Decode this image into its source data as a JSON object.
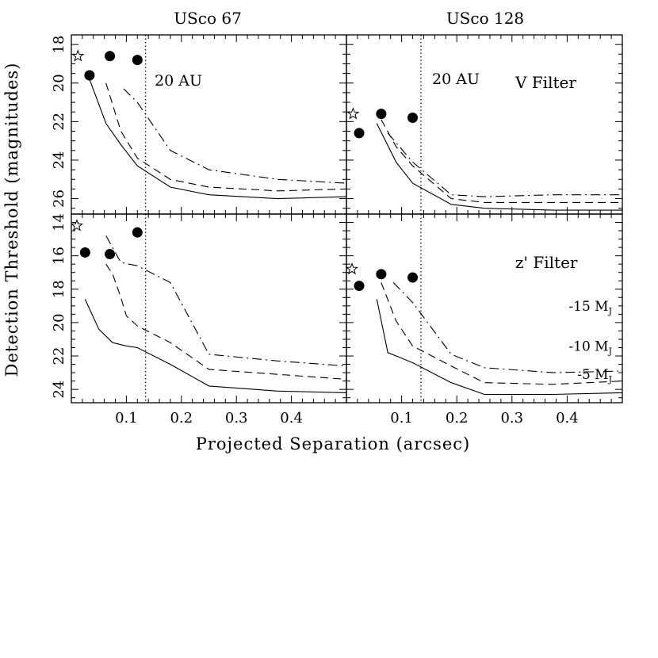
{
  "figure": {
    "xlabel": "Projected Separation (arcsec)",
    "ylabel": "Detection Threshold (magnitudes)",
    "column_titles": [
      "USco 67",
      "USco 128"
    ],
    "filter_labels": {
      "V": "V Filter",
      "z": "z' Filter"
    },
    "au_label": "20 AU",
    "mass_labels": [
      {
        "text": "-15",
        "sub": "J",
        "prefix_letter": "M",
        "mag": 19.0
      },
      {
        "text": "-10",
        "sub": "J",
        "prefix_letter": "M",
        "mag": 21.4
      },
      {
        "text": "-5",
        "sub": "J",
        "prefix_letter": "M",
        "mag": 23.1
      }
    ]
  },
  "chart_data": [
    {
      "type": "line",
      "title": "USco 67",
      "filter": "V",
      "xlim": [
        0,
        0.5
      ],
      "ylim": [
        26.8,
        17.5
      ],
      "xticks": [
        0.1,
        0.2,
        0.3,
        0.4
      ],
      "yticks": [
        18,
        20,
        22,
        24,
        26
      ],
      "vline_x": 0.135,
      "star": {
        "x": 0.012,
        "mag": 18.6
      },
      "points": [
        {
          "x": 0.033,
          "mag": 19.6
        },
        {
          "x": 0.07,
          "mag": 18.6
        },
        {
          "x": 0.12,
          "mag": 18.8
        }
      ],
      "series": [
        {
          "name": "5 MJ",
          "style": "solid",
          "x": [
            0.033,
            0.063,
            0.09,
            0.12,
            0.18,
            0.25,
            0.375,
            0.5
          ],
          "y": [
            19.8,
            22.1,
            23.2,
            24.3,
            25.4,
            25.8,
            26.0,
            25.9
          ]
        },
        {
          "name": "10 MJ",
          "style": "dashed",
          "x": [
            0.063,
            0.09,
            0.12,
            0.18,
            0.25,
            0.375,
            0.5
          ],
          "y": [
            20.0,
            22.5,
            23.9,
            25.0,
            25.4,
            25.6,
            25.5
          ]
        },
        {
          "name": "15 MJ",
          "style": "dashdot",
          "x": [
            0.095,
            0.12,
            0.18,
            0.25,
            0.375,
            0.5
          ],
          "y": [
            20.3,
            21.0,
            23.5,
            24.5,
            25.0,
            25.2
          ]
        }
      ]
    },
    {
      "type": "line",
      "title": "USco 128",
      "filter": "V",
      "xlim": [
        0,
        0.5
      ],
      "ylim": [
        26.8,
        17.5
      ],
      "xticks": [
        0.1,
        0.2,
        0.3,
        0.4
      ],
      "yticks": [
        18,
        20,
        22,
        24,
        26
      ],
      "vline_x": 0.135,
      "star": {
        "x": 0.012,
        "mag": 21.6
      },
      "points": [
        {
          "x": 0.023,
          "mag": 22.6
        },
        {
          "x": 0.063,
          "mag": 21.6
        },
        {
          "x": 0.12,
          "mag": 21.8
        }
      ],
      "series": [
        {
          "name": "5 MJ",
          "style": "solid",
          "x": [
            0.055,
            0.09,
            0.12,
            0.19,
            0.25,
            0.375,
            0.5
          ],
          "y": [
            22.1,
            24.1,
            25.2,
            26.3,
            26.5,
            26.6,
            26.6
          ]
        },
        {
          "name": "10 MJ",
          "style": "dashed",
          "x": [
            0.063,
            0.09,
            0.12,
            0.19,
            0.25,
            0.375,
            0.5
          ],
          "y": [
            21.9,
            23.3,
            24.3,
            26.0,
            26.2,
            26.2,
            26.2
          ]
        },
        {
          "name": "15 MJ",
          "style": "dashdot",
          "x": [
            0.075,
            0.12,
            0.19,
            0.25,
            0.375,
            0.5
          ],
          "y": [
            22.6,
            24.1,
            25.8,
            25.9,
            25.8,
            25.8
          ]
        }
      ]
    },
    {
      "type": "line",
      "title": "USco 67",
      "filter": "z'",
      "xlim": [
        0,
        0.5
      ],
      "ylim": [
        24.8,
        13.5
      ],
      "xticks": [
        0.1,
        0.2,
        0.3,
        0.4
      ],
      "yticks": [
        14,
        16,
        18,
        20,
        22,
        24
      ],
      "vline_x": 0.135,
      "star": {
        "x": 0.01,
        "mag": 14.2
      },
      "points": [
        {
          "x": 0.025,
          "mag": 15.8
        },
        {
          "x": 0.07,
          "mag": 15.9
        },
        {
          "x": 0.12,
          "mag": 14.6
        }
      ],
      "series": [
        {
          "name": "5 MJ",
          "style": "solid",
          "x": [
            0.025,
            0.05,
            0.075,
            0.1,
            0.12,
            0.18,
            0.25,
            0.375,
            0.5
          ],
          "y": [
            18.6,
            20.4,
            21.2,
            21.4,
            21.5,
            22.5,
            23.8,
            24.1,
            24.2
          ]
        },
        {
          "name": "10 MJ",
          "style": "dashed",
          "x": [
            0.063,
            0.075,
            0.09,
            0.1,
            0.12,
            0.18,
            0.25,
            0.375,
            0.5
          ],
          "y": [
            16.5,
            17.1,
            18.5,
            19.6,
            20.2,
            21.2,
            22.8,
            23.1,
            23.4
          ]
        },
        {
          "name": "15 MJ",
          "style": "dashdot",
          "x": [
            0.063,
            0.09,
            0.12,
            0.18,
            0.25,
            0.375,
            0.5
          ],
          "y": [
            14.8,
            16.4,
            16.6,
            17.6,
            21.9,
            22.3,
            22.6
          ]
        }
      ]
    },
    {
      "type": "line",
      "title": "USco 128",
      "filter": "z'",
      "xlim": [
        0,
        0.5
      ],
      "ylim": [
        24.8,
        13.5
      ],
      "xticks": [
        0.1,
        0.2,
        0.3,
        0.4
      ],
      "yticks": [
        14,
        16,
        18,
        20,
        22,
        24
      ],
      "vline_x": 0.135,
      "star": {
        "x": 0.01,
        "mag": 16.8
      },
      "points": [
        {
          "x": 0.023,
          "mag": 17.8
        },
        {
          "x": 0.063,
          "mag": 17.1
        },
        {
          "x": 0.12,
          "mag": 17.3
        }
      ],
      "series": [
        {
          "name": "5 MJ",
          "style": "solid",
          "x": [
            0.055,
            0.075,
            0.12,
            0.19,
            0.25,
            0.375,
            0.5
          ],
          "y": [
            18.6,
            21.8,
            22.4,
            23.6,
            24.3,
            24.3,
            24.2
          ]
        },
        {
          "name": "10 MJ",
          "style": "dashed",
          "x": [
            0.063,
            0.09,
            0.12,
            0.19,
            0.25,
            0.375,
            0.5
          ],
          "y": [
            17.6,
            19.9,
            21.4,
            22.6,
            23.6,
            23.7,
            23.5
          ]
        },
        {
          "name": "15 MJ",
          "style": "dashdot",
          "x": [
            0.085,
            0.12,
            0.19,
            0.25,
            0.375,
            0.5
          ],
          "y": [
            17.6,
            18.8,
            21.9,
            22.7,
            23.0,
            22.9
          ]
        }
      ]
    }
  ]
}
